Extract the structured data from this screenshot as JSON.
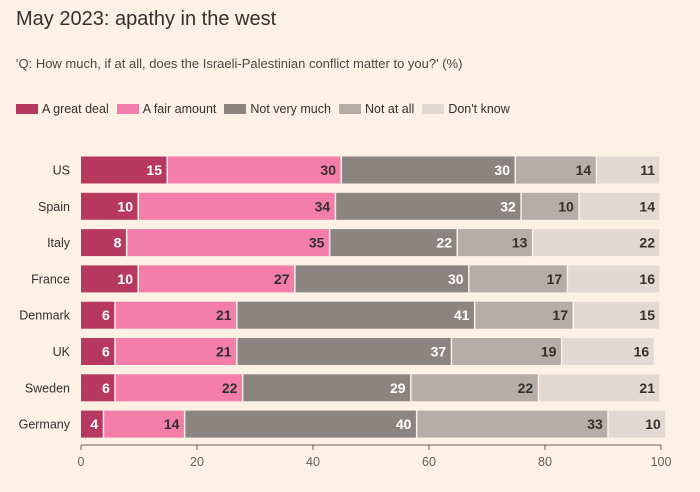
{
  "chart_data": {
    "type": "bar",
    "orientation": "horizontal",
    "stacked": true,
    "title": "May 2023: apathy in the west",
    "subtitle": "'Q: How much, if at all, does the Israeli-Palestinian conflict matter to you?' (%)",
    "categories": [
      "US",
      "Spain",
      "Italy",
      "France",
      "Denmark",
      "UK",
      "Sweden",
      "Germany"
    ],
    "series": [
      {
        "name": "A great deal",
        "color": "#b8395f",
        "label_color": "#ffffff",
        "values": [
          15,
          10,
          8,
          10,
          6,
          6,
          6,
          4
        ]
      },
      {
        "name": "A fair amount",
        "color": "#f47eaa",
        "label_color": "#33302e",
        "values": [
          30,
          34,
          35,
          27,
          21,
          21,
          22,
          14
        ]
      },
      {
        "name": "Not very much",
        "color": "#8c8481",
        "label_color": "#ffffff",
        "values": [
          30,
          32,
          22,
          30,
          41,
          37,
          29,
          40
        ]
      },
      {
        "name": "Not at all",
        "color": "#b7ada8",
        "label_color": "#33302e",
        "values": [
          14,
          10,
          13,
          17,
          17,
          19,
          22,
          33
        ]
      },
      {
        "name": "Don't know",
        "color": "#e4d9d2",
        "label_color": "#33302e",
        "values": [
          11,
          14,
          22,
          16,
          15,
          16,
          21,
          10
        ]
      }
    ],
    "xlim": [
      0,
      100
    ],
    "xticks": [
      0,
      20,
      40,
      60,
      80,
      100
    ],
    "xlabel": "",
    "ylabel": "",
    "grid": false,
    "legend_position": "top-left"
  }
}
